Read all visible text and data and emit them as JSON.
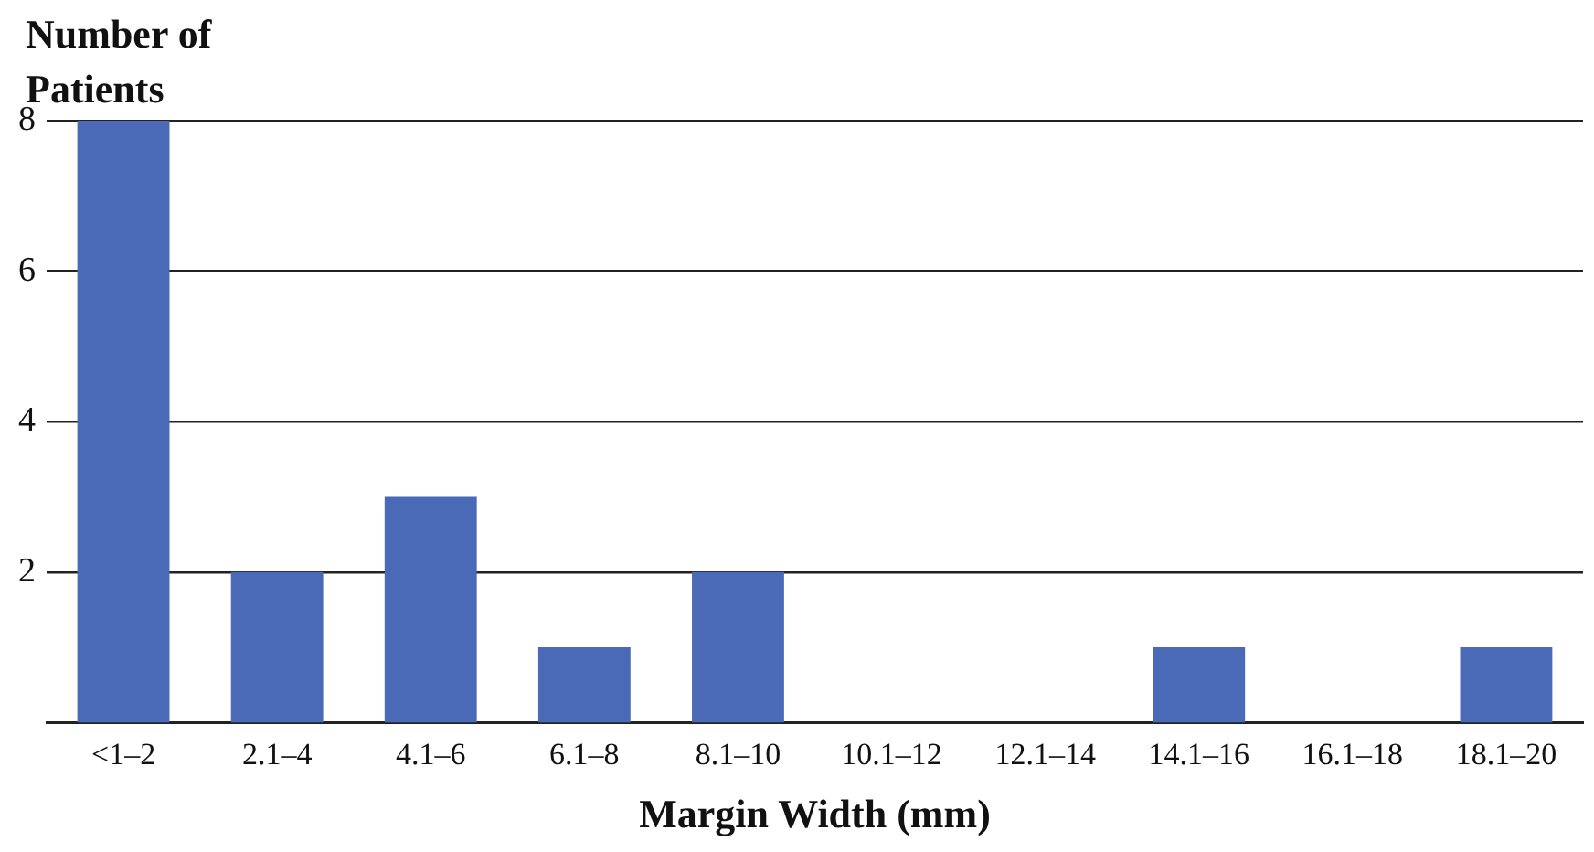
{
  "chart_data": {
    "type": "bar",
    "ylabel": "Number of Patients",
    "xlabel": "Margin Width (mm)",
    "categories": [
      "<1–2",
      "2.1–4",
      "4.1–6",
      "6.1–8",
      "8.1–10",
      "10.1–12",
      "12.1–14",
      "14.1–16",
      "16.1–18",
      "18.1–20"
    ],
    "values": [
      8,
      2,
      3,
      1,
      2,
      0,
      0,
      1,
      0,
      1
    ],
    "color": "#4a69b7",
    "ylim": [
      0,
      8
    ],
    "yticks": [
      2,
      4,
      6,
      8
    ],
    "grid": "y",
    "legend": false
  }
}
